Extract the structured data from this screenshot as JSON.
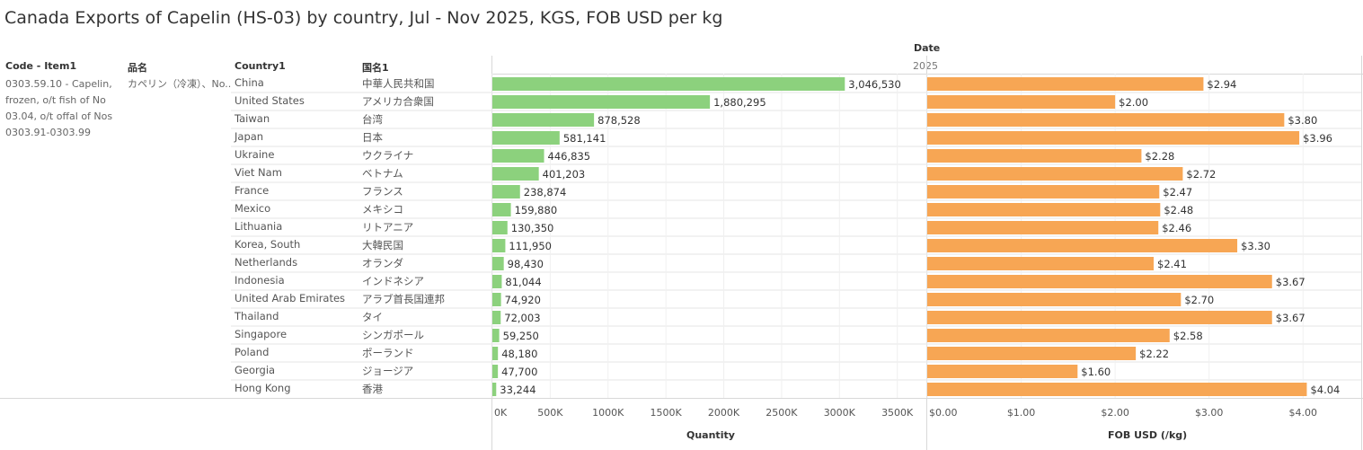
{
  "title": "Canada Exports of Capelin (HS-03) by country, Jul - Nov 2025, KGS, FOB USD per kg",
  "headers": {
    "date": "Date",
    "year": "2025",
    "code": "Code - Item1",
    "item_jp": "品名",
    "country": "Country1",
    "country_jp": "国名1"
  },
  "item": {
    "code_lines": [
      "0303.59.10 - Capelin,",
      "frozen, o/t fish of No",
      "03.04, o/t offal of Nos",
      "0303.91-0303.99"
    ],
    "name_jp": "カペリン（冷凍）、No.."
  },
  "chart_data": {
    "type": "bar",
    "categories": [
      "China",
      "United States",
      "Taiwan",
      "Japan",
      "Ukraine",
      "Viet Nam",
      "France",
      "Mexico",
      "Lithuania",
      "Korea, South",
      "Netherlands",
      "Indonesia",
      "United Arab Emirates",
      "Thailand",
      "Singapore",
      "Poland",
      "Georgia",
      "Hong Kong"
    ],
    "categories_jp": [
      "中華人民共和国",
      "アメリカ合衆国",
      "台湾",
      "日本",
      "ウクライナ",
      "ベトナム",
      "フランス",
      "メキシコ",
      "リトアニア",
      "大韓民国",
      "オランダ",
      "インドネシア",
      "アラブ首長国連邦",
      "タイ",
      "シンガポール",
      "ポーランド",
      "ジョージア",
      "香港"
    ],
    "series": [
      {
        "name": "Quantity",
        "values": [
          3046530,
          1880295,
          878528,
          581141,
          446835,
          401203,
          238874,
          159880,
          130350,
          111950,
          98430,
          81044,
          74920,
          72003,
          59250,
          48180,
          47700,
          33244
        ],
        "labels": [
          "3,046,530",
          "1,880,295",
          "878,528",
          "581,141",
          "446,835",
          "401,203",
          "238,874",
          "159,880",
          "130,350",
          "111,950",
          "98,430",
          "81,044",
          "74,920",
          "72,003",
          "59,250",
          "48,180",
          "47,700",
          "33,244"
        ],
        "color": "#8cd17d",
        "xlim": [
          0,
          3650000
        ],
        "ticks": [
          0,
          500000,
          1000000,
          1500000,
          2000000,
          2500000,
          3000000,
          3500000
        ],
        "tick_labels": [
          "0K",
          "500K",
          "1000K",
          "1500K",
          "2000K",
          "2500K",
          "3000K",
          "3500K"
        ],
        "axis_title": "Quantity"
      },
      {
        "name": "FOB USD (/kg)",
        "values": [
          2.94,
          2.0,
          3.8,
          3.96,
          2.28,
          2.72,
          2.47,
          2.48,
          2.46,
          3.3,
          2.41,
          3.67,
          2.7,
          3.67,
          2.58,
          2.22,
          1.6,
          4.04
        ],
        "labels": [
          "$2.94",
          "$2.00",
          "$3.80",
          "$3.96",
          "$2.28",
          "$2.72",
          "$2.47",
          "$2.48",
          "$2.46",
          "$3.30",
          "$2.41",
          "$3.67",
          "$2.70",
          "$3.67",
          "$2.58",
          "$2.22",
          "$1.60",
          "$4.04"
        ],
        "color": "#f7a654",
        "xlim": [
          0,
          4.6
        ],
        "ticks": [
          0,
          1,
          2,
          3,
          4
        ],
        "tick_labels": [
          "$0.00",
          "$1.00",
          "$2.00",
          "$3.00",
          "$4.00"
        ],
        "axis_title": "FOB USD (/kg)"
      }
    ]
  }
}
